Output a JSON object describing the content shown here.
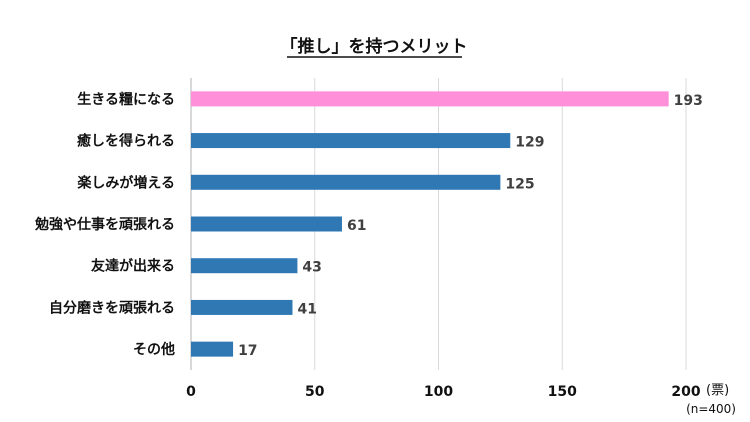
{
  "chart_data": {
    "type": "bar",
    "orientation": "horizontal",
    "title": "「推し」を持つメリット",
    "categories": [
      "生きる糧になる",
      "癒しを得られる",
      "楽しみが増える",
      "勉強や仕事を頑張れる",
      "友達が出来る",
      "自分磨きを頑張れる",
      "その他"
    ],
    "values": [
      193,
      129,
      125,
      61,
      43,
      41,
      17
    ],
    "xlim": [
      0,
      200
    ],
    "xticks": [
      0,
      50,
      100,
      150,
      200
    ],
    "unit": "(票)",
    "note": "(n=400)",
    "grid": true,
    "colors": {
      "highlight": "#ff8fd8",
      "default": "#2f78b4",
      "grid": "#d9d9d9",
      "axis": "#b0b0b0"
    },
    "highlight_index": 0
  }
}
